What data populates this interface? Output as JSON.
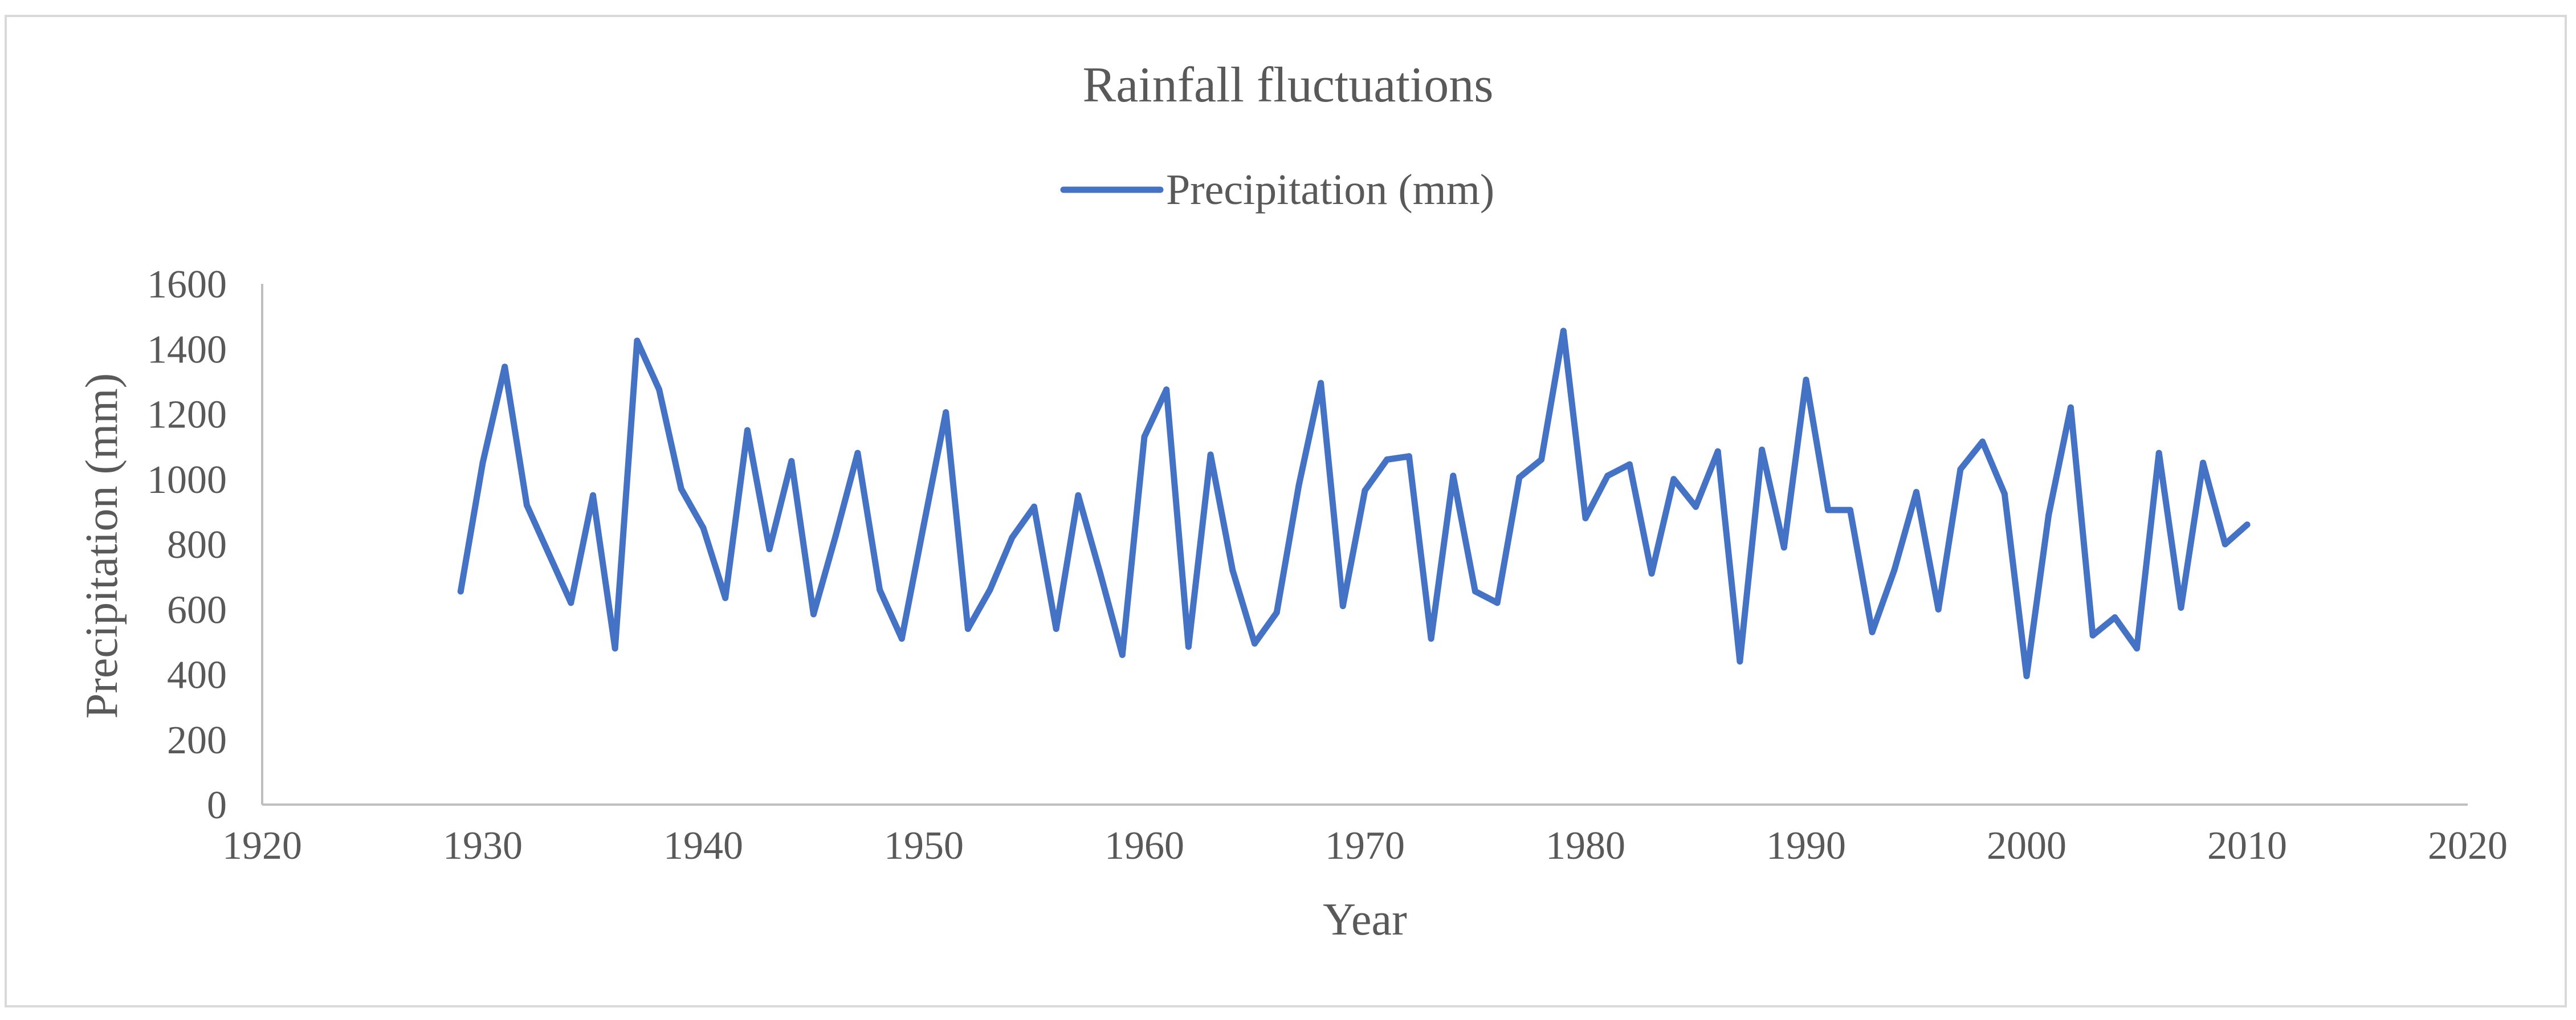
{
  "colors": {
    "line": "#4472c4",
    "axis": "#bfbfbf",
    "text": "#595959",
    "border": "#d9d9d9"
  },
  "chart_data": {
    "type": "line",
    "title": "Rainfall fluctuations",
    "xlabel": "Year",
    "ylabel": "Precipitation (mm)",
    "xlim": [
      1920,
      2020
    ],
    "ylim": [
      0,
      1600
    ],
    "x_ticks": [
      "1920",
      "1930",
      "1940",
      "1950",
      "1960",
      "1970",
      "1980",
      "1990",
      "2000",
      "2010",
      "2020"
    ],
    "y_ticks": [
      "0",
      "200",
      "400",
      "600",
      "800",
      "1000",
      "1200",
      "1400",
      "1600"
    ],
    "grid": false,
    "legend_position": "top-center",
    "series": [
      {
        "name": "Precipitation (mm)",
        "x": [
          1929,
          1930,
          1931,
          1932,
          1933,
          1934,
          1935,
          1936,
          1937,
          1938,
          1939,
          1940,
          1941,
          1942,
          1943,
          1944,
          1945,
          1946,
          1947,
          1948,
          1949,
          1950,
          1951,
          1952,
          1953,
          1954,
          1955,
          1956,
          1957,
          1958,
          1959,
          1960,
          1961,
          1962,
          1963,
          1964,
          1965,
          1966,
          1967,
          1968,
          1969,
          1970,
          1971,
          1972,
          1973,
          1974,
          1975,
          1976,
          1977,
          1978,
          1979,
          1980,
          1981,
          1982,
          1983,
          1984,
          1985,
          1986,
          1987,
          1988,
          1989,
          1990,
          1991,
          1992,
          1993,
          1994,
          1995,
          1996,
          1997,
          1998,
          1999,
          2000,
          2001,
          2002,
          2003,
          2004,
          2005,
          2006,
          2007,
          2008,
          2009,
          2010
        ],
        "values": [
          655,
          1050,
          1345,
          920,
          770,
          620,
          950,
          480,
          1425,
          1275,
          970,
          850,
          635,
          1150,
          785,
          1055,
          585,
          825,
          1080,
          660,
          510,
          860,
          1205,
          540,
          660,
          820,
          915,
          540,
          950,
          710,
          460,
          1130,
          1275,
          485,
          1075,
          720,
          495,
          590,
          980,
          1295,
          610,
          965,
          1060,
          1070,
          510,
          1010,
          655,
          620,
          1005,
          1060,
          1455,
          880,
          1010,
          1045,
          710,
          1000,
          915,
          1085,
          440,
          1090,
          790,
          1305,
          905,
          905,
          530,
          720,
          960,
          600,
          1030,
          1115,
          955,
          395,
          890,
          1220,
          520,
          575,
          480,
          1080,
          605,
          1050,
          800,
          860
        ]
      }
    ]
  }
}
